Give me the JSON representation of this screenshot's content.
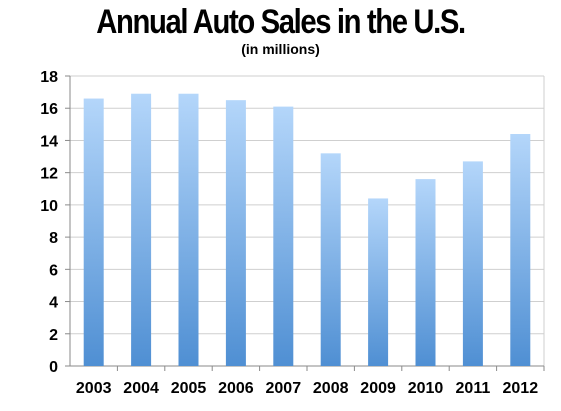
{
  "chart_data": {
    "type": "bar",
    "title": "Annual Auto Sales in the U.S.",
    "subtitle": "(in millions)",
    "categories": [
      "2003",
      "2004",
      "2005",
      "2006",
      "2007",
      "2008",
      "2009",
      "2010",
      "2011",
      "2012"
    ],
    "values": [
      16.6,
      16.9,
      16.9,
      16.5,
      16.1,
      13.2,
      10.4,
      11.6,
      12.7,
      14.4
    ],
    "ylim": [
      0,
      18
    ],
    "yticks": [
      "0",
      "2",
      "4",
      "6",
      "8",
      "10",
      "12",
      "14",
      "16",
      "18"
    ],
    "xlabel": "",
    "ylabel": "",
    "grid": true,
    "legend": "none",
    "colors": {
      "bar_top": "#b4d6fa",
      "bar_bottom": "#4f8fd3",
      "grid": "#cfcfcf",
      "axis": "#8a8a8a"
    }
  }
}
